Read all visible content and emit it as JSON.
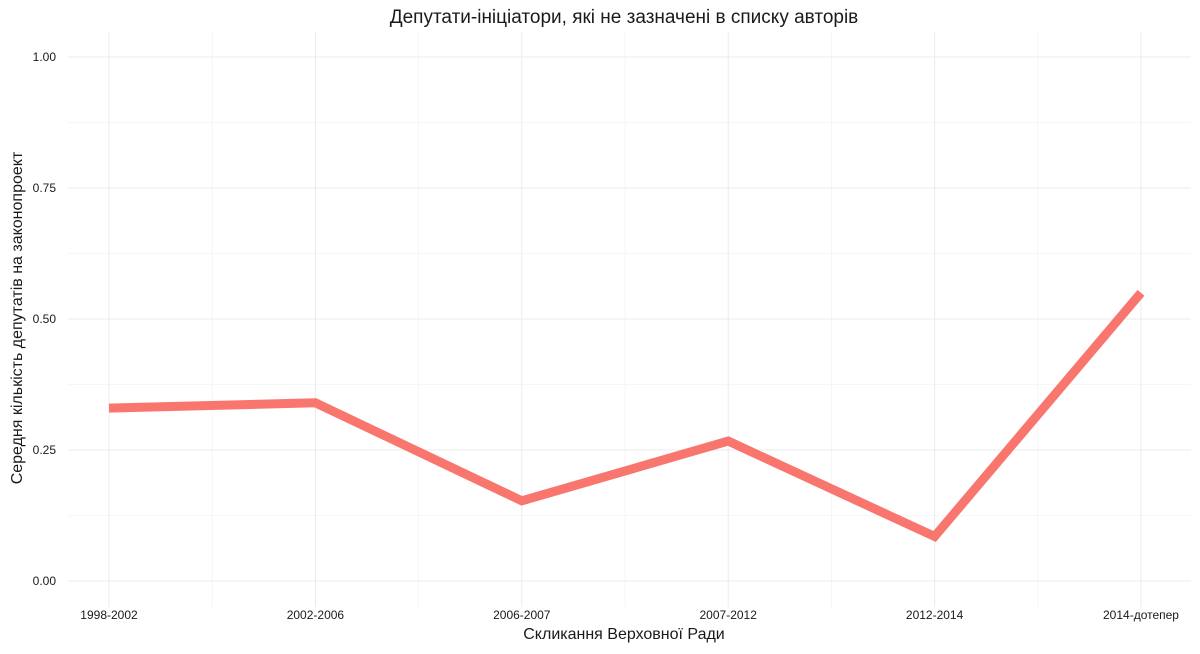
{
  "chart_data": {
    "type": "line",
    "title": "Депутати-ініціатори, які не зазначені в списку авторів",
    "xlabel": "Скликання Верховної Ради",
    "ylabel": "Середня кількість депутатів на законопроект",
    "categories": [
      "1998-2002",
      "2002-2006",
      "2006-2007",
      "2007-2012",
      "2012-2014",
      "2014-дотепер"
    ],
    "series": [
      {
        "values": [
          0.33,
          0.34,
          0.153,
          0.267,
          0.085,
          0.55
        ],
        "color": "#F8766D"
      }
    ],
    "ylim": [
      0,
      1
    ],
    "yticks": [
      0,
      0.25,
      0.5,
      0.75,
      1
    ],
    "ytick_labels": [
      "0.00",
      "0.25",
      "0.50",
      "0.75",
      "1.00"
    ],
    "grid": true,
    "legend": "none"
  }
}
